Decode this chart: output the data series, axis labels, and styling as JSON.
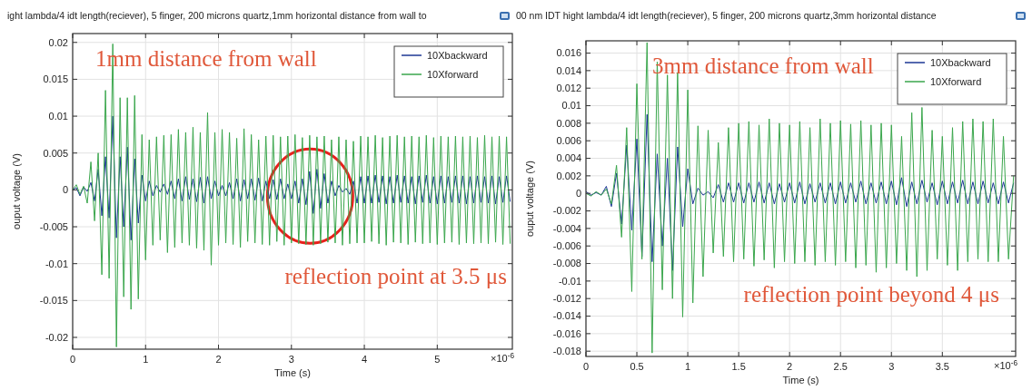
{
  "chart_data": [
    {
      "type": "line",
      "title": "ight lambda/4 idt length(reciever), 5 finger, 200 microns quartz,1mm horizontal  distance from wall to",
      "xlabel": "Time (s)",
      "ylabel": "ouput voltage (V)",
      "annotations": [
        "1mm distance from wall",
        "reflection point at 3.5 μs",
        "×10$^{-6}$"
      ],
      "xlim": [
        0,
        6.03
      ],
      "ylim": [
        -0.0216,
        0.0212
      ],
      "xticks": [
        0,
        1,
        2,
        3,
        4,
        5
      ],
      "yticks": [
        -0.02,
        -0.015,
        -0.01,
        -0.005,
        0,
        0.005,
        0.01,
        0.015,
        0.02
      ],
      "grid": true,
      "legend": "top right",
      "line_style": "solid",
      "marker": "none",
      "x": [
        0,
        0.05,
        0.1,
        0.15,
        0.2,
        0.25,
        0.3,
        0.35,
        0.4,
        0.45,
        0.5,
        0.55,
        0.6,
        0.65,
        0.7,
        0.75,
        0.8,
        0.85,
        0.9,
        0.95,
        1,
        1.05,
        1.1,
        1.15,
        1.2,
        1.25,
        1.3,
        1.35,
        1.4,
        1.45,
        1.5,
        1.55,
        1.6,
        1.65,
        1.7,
        1.75,
        1.8,
        1.85,
        1.9,
        1.95,
        2,
        2.05,
        2.1,
        2.15,
        2.2,
        2.25,
        2.3,
        2.35,
        2.4,
        2.45,
        2.5,
        2.55,
        2.6,
        2.65,
        2.7,
        2.75,
        2.8,
        2.85,
        2.9,
        2.95,
        3,
        3.05,
        3.1,
        3.15,
        3.2,
        3.25,
        3.3,
        3.35,
        3.4,
        3.45,
        3.5,
        3.55,
        3.6,
        3.65,
        3.7,
        3.75,
        3.8,
        3.85,
        3.9,
        3.95,
        4,
        4.05,
        4.1,
        4.15,
        4.2,
        4.25,
        4.3,
        4.35,
        4.4,
        4.45,
        4.5,
        4.55,
        4.6,
        4.65,
        4.7,
        4.75,
        4.8,
        4.85,
        4.9,
        4.95,
        5,
        5.05,
        5.1,
        5.15,
        5.2,
        5.25,
        5.3,
        5.35,
        5.4,
        5.45,
        5.5,
        5.55,
        5.6,
        5.65,
        5.7,
        5.75,
        5.8,
        5.85,
        5.9,
        5.95,
        6
      ],
      "series": [
        {
          "name": "10Xbackward",
          "color": "#1c3794",
          "values": [
            0,
            0.0003,
            -0.0008,
            0.0004,
            -0.0002,
            0.001,
            -0.0015,
            0.0028,
            -0.0035,
            0.0045,
            -0.0038,
            0.01,
            -0.0065,
            0.0045,
            -0.005,
            0.0058,
            -0.0068,
            0.0042,
            -0.0045,
            0.002,
            -0.0015,
            0.0012,
            -0.0008,
            0.0006,
            -0.0003,
            0.0008,
            -0.0006,
            0.0012,
            -0.0012,
            0.0015,
            -0.0015,
            0.0018,
            -0.0013,
            0.0015,
            -0.0016,
            0.0017,
            -0.0018,
            0.0018,
            -0.0012,
            0.0012,
            -0.0008,
            0.0006,
            -0.0008,
            0.001,
            -0.0012,
            0.0015,
            -0.0015,
            0.0014,
            -0.0012,
            0.0015,
            -0.0014,
            0.0016,
            -0.0015,
            0.0012,
            -0.0012,
            0.0014,
            -0.0013,
            0.0015,
            -0.0012,
            0.0008,
            -0.0012,
            0.0012,
            -0.0018,
            0.0015,
            -0.002,
            0.0025,
            -0.0032,
            0.0028,
            -0.0025,
            0.0022,
            -0.0018,
            0.0012,
            -0.0008,
            0.0006,
            -0.0003,
            0.0002,
            -0.0006,
            0.0012,
            -0.0018,
            0.0018,
            -0.0018,
            0.0019,
            -0.0018,
            0.002,
            -0.0017,
            0.0019,
            -0.0019,
            0.0018,
            -0.0018,
            0.002,
            -0.0017,
            0.0019,
            -0.0018,
            0.0018,
            -0.0019,
            0.0019,
            -0.0017,
            0.002,
            -0.0018,
            0.0018,
            -0.0019,
            0.0019,
            -0.0018,
            0.0018,
            -0.0017,
            0.0019,
            -0.0018,
            0.0019,
            -0.0019,
            0.0018,
            -0.0018,
            0.0019,
            -0.0017,
            0.0018,
            -0.0018,
            0.0019,
            -0.0019,
            0.0018,
            -0.0017,
            0.0019,
            -0.0016
          ]
        },
        {
          "name": "10Xforward",
          "color": "#3aa64c",
          "values": [
            0,
            0.0007,
            -0.0006,
            0.0005,
            -0.0018,
            0.0038,
            -0.0042,
            0.005,
            -0.0115,
            0.0135,
            -0.012,
            0.0198,
            -0.0213,
            0.0125,
            -0.0145,
            0.0125,
            -0.0162,
            0.0128,
            -0.0148,
            0.0075,
            -0.0095,
            0.0068,
            -0.0075,
            0.0072,
            -0.0068,
            0.0074,
            -0.0085,
            0.0075,
            -0.0078,
            0.0082,
            -0.0072,
            0.0078,
            -0.0075,
            0.0085,
            -0.0079,
            0.0078,
            -0.0082,
            0.0105,
            -0.0102,
            0.0078,
            -0.0075,
            0.0082,
            -0.0072,
            0.0078,
            -0.0074,
            0.007,
            -0.0078,
            0.0083,
            -0.007,
            0.0075,
            -0.0072,
            0.0068,
            -0.0074,
            0.0073,
            -0.0075,
            0.0074,
            -0.007,
            0.0072,
            -0.0075,
            0.0073,
            -0.0072,
            0.0075,
            -0.0073,
            0.0071,
            -0.0074,
            0.0074,
            -0.0075,
            0.0072,
            -0.0073,
            0.0073,
            -0.0071,
            0.0068,
            -0.0072,
            0.0072,
            -0.0075,
            0.0068,
            -0.0073,
            0.0066,
            -0.0072,
            0.0073,
            -0.0072,
            0.0072,
            -0.007,
            0.0074,
            -0.0073,
            0.0071,
            -0.0075,
            0.0073,
            -0.0071,
            0.0074,
            -0.0072,
            0.0072,
            -0.0074,
            0.0073,
            -0.0071,
            0.0072,
            -0.0073,
            0.0074,
            -0.0072,
            0.0071,
            -0.0074,
            0.0073,
            -0.0072,
            0.0072,
            -0.0071,
            0.0073,
            -0.0074,
            0.0072,
            -0.0072,
            0.0073,
            -0.0073,
            0.0071,
            -0.0072,
            0.0074,
            -0.0073,
            0.0072,
            -0.0071,
            0.0073,
            -0.0074,
            0.0072,
            -0.0073
          ]
        }
      ]
    },
    {
      "type": "line",
      "title": "00 nm IDT hight lambda/4 idt length(reciever), 5 finger, 200 microns quartz,3mm horizontal distance",
      "xlabel": "Time (s)",
      "ylabel": "ouput voltage (V)",
      "annotations": [
        "3mm distance from wall",
        "reflection point beyond 4  μs",
        "×10$^{-6}$"
      ],
      "xlim": [
        0,
        4.22
      ],
      "ylim": [
        -0.0186,
        0.0174
      ],
      "xticks": [
        0,
        0.5,
        1,
        1.5,
        2,
        2.5,
        3,
        3.5
      ],
      "yticks": [
        -0.018,
        -0.016,
        -0.014,
        -0.012,
        -0.01,
        -0.008,
        -0.006,
        -0.004,
        -0.002,
        0,
        0.002,
        0.004,
        0.006,
        0.008,
        0.01,
        0.012,
        0.014,
        0.016
      ],
      "grid": true,
      "legend": "top right",
      "line_style": "solid",
      "marker": "none",
      "x": [
        0,
        0.05,
        0.1,
        0.15,
        0.2,
        0.25,
        0.3,
        0.35,
        0.4,
        0.45,
        0.5,
        0.55,
        0.6,
        0.65,
        0.7,
        0.75,
        0.8,
        0.85,
        0.9,
        0.95,
        1,
        1.05,
        1.1,
        1.15,
        1.2,
        1.25,
        1.3,
        1.35,
        1.4,
        1.45,
        1.5,
        1.55,
        1.6,
        1.65,
        1.7,
        1.75,
        1.8,
        1.85,
        1.9,
        1.95,
        2,
        2.05,
        2.1,
        2.15,
        2.2,
        2.25,
        2.3,
        2.35,
        2.4,
        2.45,
        2.5,
        2.55,
        2.6,
        2.65,
        2.7,
        2.75,
        2.8,
        2.85,
        2.9,
        2.95,
        3,
        3.05,
        3.1,
        3.15,
        3.2,
        3.25,
        3.3,
        3.35,
        3.4,
        3.45,
        3.5,
        3.55,
        3.6,
        3.65,
        3.7,
        3.75,
        3.8,
        3.85,
        3.9,
        3.95,
        4,
        4.05,
        4.1,
        4.15,
        4.2
      ],
      "series": [
        {
          "name": "10Xbackward",
          "color": "#1c3794",
          "values": [
            0.0002,
            -0.0002,
            0.0001,
            -0.0002,
            0.0008,
            -0.0015,
            0.0023,
            -0.0035,
            0.0055,
            -0.0042,
            0.0062,
            -0.0072,
            0.009,
            -0.0078,
            0.0045,
            -0.006,
            0.004,
            -0.0088,
            0.0053,
            -0.0038,
            0.0028,
            -0.0012,
            0.0006,
            -0.0002,
            0.0002,
            -0.0005,
            0.001,
            -0.001,
            0.0012,
            -0.001,
            0.0012,
            -0.0011,
            0.0012,
            -0.001,
            0.0013,
            -0.0011,
            0.0012,
            -0.0012,
            0.0011,
            -0.001,
            0.0012,
            -0.0011,
            0.0013,
            -0.0012,
            0.0011,
            -0.001,
            0.0012,
            -0.0011,
            0.0012,
            -0.0012,
            0.0013,
            -0.0011,
            0.0012,
            -0.001,
            0.0014,
            -0.0012,
            0.0012,
            -0.0011,
            0.0013,
            -0.0012,
            0.0014,
            -0.0013,
            0.0018,
            -0.0015,
            0.0013,
            -0.0012,
            0.0015,
            -0.001,
            0.0012,
            -0.0013,
            0.0014,
            -0.0012,
            0.0013,
            -0.0011,
            0.0015,
            -0.0012,
            0.0013,
            -0.0012,
            0.0014,
            -0.0011,
            0.0012,
            -0.0012,
            0.0013,
            -0.0011,
            0.0012
          ]
        },
        {
          "name": "10Xforward",
          "color": "#3aa64c",
          "values": [
            0,
            -0.0003,
            0.0002,
            -0.0002,
            0.0005,
            -0.0012,
            0.0032,
            -0.005,
            0.0075,
            -0.0112,
            0.0125,
            -0.0075,
            0.0172,
            -0.0182,
            0.015,
            -0.011,
            0.0135,
            -0.012,
            0.0138,
            -0.0141,
            0.0118,
            -0.0125,
            0.0077,
            -0.0095,
            0.0072,
            -0.0068,
            0.0058,
            -0.0072,
            0.0075,
            -0.0078,
            0.008,
            -0.0075,
            0.0082,
            -0.0083,
            0.0078,
            -0.0076,
            0.0085,
            -0.0085,
            0.008,
            -0.0078,
            0.0078,
            -0.008,
            0.0082,
            -0.0078,
            0.0075,
            -0.0082,
            0.0085,
            -0.0078,
            0.008,
            -0.0082,
            0.0083,
            -0.0078,
            0.0079,
            -0.0085,
            0.0083,
            -0.0082,
            0.0078,
            -0.009,
            0.008,
            -0.0085,
            0.0078,
            -0.008,
            0.0065,
            -0.0088,
            0.0092,
            -0.0095,
            0.0098,
            -0.0088,
            0.0072,
            -0.0075,
            0.0065,
            -0.0082,
            0.0075,
            -0.0088,
            0.0082,
            -0.0078,
            0.0085,
            -0.0075,
            0.0082,
            -0.0078,
            0.0085,
            -0.0078,
            0.0065,
            -0.0075,
            0.002
          ]
        }
      ]
    }
  ]
}
